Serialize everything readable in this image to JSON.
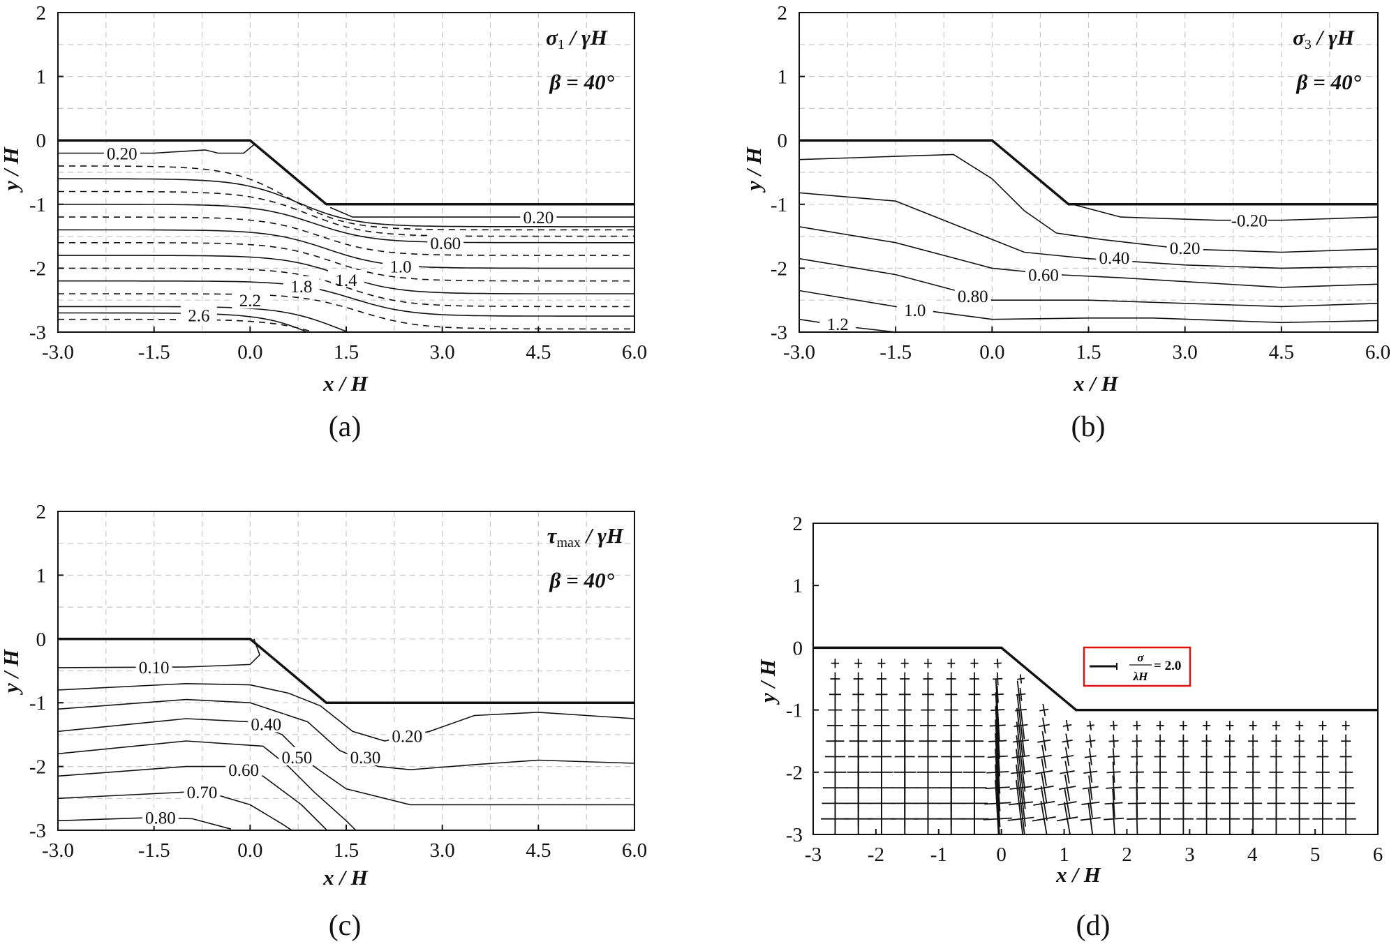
{
  "chart_data": [
    {
      "id": "a",
      "type": "contour",
      "caption": "(a)",
      "annotation_quantity": "σ",
      "annotation_sub": "1",
      "annotation_rest": " / γH",
      "annotation_angle": "β = 40°",
      "xlabel": "x / H",
      "ylabel": "y / H",
      "xlim": [
        -3,
        6
      ],
      "ylim": [
        -3,
        2
      ],
      "xticks": [
        "-3.0",
        "-1.5",
        "0.0",
        "1.5",
        "3.0",
        "4.5",
        "6.0"
      ],
      "xtick_values": [
        -3,
        -1.5,
        0,
        1.5,
        3,
        4.5,
        6
      ],
      "yticks": [
        "2",
        "1",
        "0",
        "-1",
        "-2",
        "-3"
      ],
      "ytick_values": [
        2,
        1,
        0,
        -1,
        -2,
        -3
      ],
      "grid": true,
      "slope_profile": [
        [
          -3,
          0
        ],
        [
          0,
          0
        ],
        [
          1.19,
          -1
        ],
        [
          6,
          -1
        ]
      ],
      "contours": [
        {
          "label": "0.20",
          "dashed": false,
          "points": [
            [
              -3,
              -0.2
            ],
            [
              -1.5,
              -0.2
            ],
            [
              -0.7,
              -0.15
            ],
            [
              -0.5,
              -0.2
            ],
            [
              -0.1,
              -0.2
            ],
            [
              0.08,
              -0.05
            ]
          ],
          "label_at": [
            -2.0,
            -0.2
          ]
        },
        {
          "label": "0.20",
          "dashed": false,
          "points": [
            [
              1.25,
              -1.05
            ],
            [
              1.6,
              -1.2
            ],
            [
              3,
              -1.2
            ],
            [
              6,
              -1.2
            ]
          ],
          "label_at": [
            4.5,
            -1.2
          ]
        },
        {
          "label": "",
          "dashed": true,
          "sigmoid": [
            -0.4,
            -1.4,
            0.6
          ]
        },
        {
          "label": "",
          "dashed": false,
          "sigmoid": [
            -0.6,
            -1.35,
            0.75
          ]
        },
        {
          "label": "",
          "dashed": true,
          "sigmoid": [
            -0.8,
            -1.5,
            0.9
          ]
        },
        {
          "label": "0.60",
          "dashed": false,
          "sigmoid": [
            -1.0,
            -1.6,
            1.0
          ],
          "label_at": [
            3.05,
            -1.6
          ]
        },
        {
          "label": "",
          "dashed": true,
          "sigmoid": [
            -1.2,
            -1.8,
            1.1
          ]
        },
        {
          "label": "1.0",
          "dashed": false,
          "sigmoid": [
            -1.4,
            -2.0,
            1.2
          ],
          "label_at": [
            2.35,
            -1.97
          ]
        },
        {
          "label": "",
          "dashed": true,
          "sigmoid": [
            -1.6,
            -2.2,
            1.3
          ]
        },
        {
          "label": "1.4",
          "dashed": false,
          "sigmoid": [
            -1.8,
            -2.4,
            1.4
          ],
          "label_at": [
            1.5,
            -2.18
          ]
        },
        {
          "label": "",
          "dashed": true,
          "sigmoid": [
            -2.0,
            -2.6,
            1.5
          ]
        },
        {
          "label": "1.8",
          "dashed": false,
          "sigmoid": [
            -2.2,
            -2.75,
            1.6
          ],
          "label_at": [
            0.8,
            -2.28
          ]
        },
        {
          "label": "",
          "dashed": true,
          "sigmoid": [
            -2.4,
            -2.95,
            1.7
          ]
        },
        {
          "label": "2.2",
          "dashed": false,
          "sigmoid": [
            -2.6,
            -3.3,
            1.4
          ],
          "label_at": [
            0.0,
            -2.5
          ]
        },
        {
          "label": "",
          "dashed": true,
          "sigmoid": [
            -2.8,
            -3.4,
            1.3
          ]
        },
        {
          "label": "2.6",
          "dashed": false,
          "sigmoid": [
            -2.7,
            -3.6,
            1.2
          ],
          "label_at": [
            -0.8,
            -2.73
          ]
        }
      ]
    },
    {
      "id": "b",
      "type": "contour",
      "caption": "(b)",
      "annotation_quantity": "σ",
      "annotation_sub": "3",
      "annotation_rest": " / γH",
      "annotation_angle": "β = 40°",
      "xlabel": "x / H",
      "ylabel": "y / H",
      "xlim": [
        -3,
        6
      ],
      "ylim": [
        -3,
        2
      ],
      "xticks": [
        "-3.0",
        "-1.5",
        "0.0",
        "1.5",
        "3.0",
        "4.5",
        "6.0"
      ],
      "xtick_values": [
        -3,
        -1.5,
        0,
        1.5,
        3,
        4.5,
        6
      ],
      "yticks": [
        "2",
        "1",
        "0",
        "-1",
        "-2",
        "-3"
      ],
      "ytick_values": [
        2,
        1,
        0,
        -1,
        -2,
        -3
      ],
      "grid": true,
      "slope_profile": [
        [
          -3,
          0
        ],
        [
          0,
          0
        ],
        [
          1.19,
          -1
        ],
        [
          6,
          -1
        ]
      ],
      "contours": [
        {
          "label": "-0.20",
          "dashed": false,
          "points": [
            [
              1.25,
              -1.0
            ],
            [
              2,
              -1.2
            ],
            [
              3.5,
              -1.25
            ],
            [
              4.5,
              -1.25
            ],
            [
              6,
              -1.2
            ]
          ],
          "label_at": [
            4.0,
            -1.25
          ]
        },
        {
          "label": "0.20",
          "dashed": false,
          "points": [
            [
              -3,
              -0.3
            ],
            [
              -1.5,
              -0.25
            ],
            [
              -0.6,
              -0.22
            ],
            [
              0.0,
              -0.6
            ],
            [
              0.5,
              -1.1
            ],
            [
              1.0,
              -1.45
            ],
            [
              1.7,
              -1.55
            ],
            [
              3,
              -1.7
            ],
            [
              4.5,
              -1.75
            ],
            [
              6,
              -1.7
            ]
          ],
          "label_at": [
            3.0,
            -1.68
          ]
        },
        {
          "label": "0.40",
          "dashed": false,
          "points": [
            [
              -3,
              -0.82
            ],
            [
              -1.5,
              -0.95
            ],
            [
              -0.5,
              -1.35
            ],
            [
              0.5,
              -1.75
            ],
            [
              1.5,
              -1.85
            ],
            [
              3,
              -1.95
            ],
            [
              4.5,
              -2.0
            ],
            [
              6,
              -1.97
            ]
          ],
          "label_at": [
            1.9,
            -1.83
          ]
        },
        {
          "label": "0.60",
          "dashed": false,
          "points": [
            [
              -3,
              -1.35
            ],
            [
              -1.5,
              -1.6
            ],
            [
              0,
              -2.0
            ],
            [
              1,
              -2.1
            ],
            [
              2,
              -2.15
            ],
            [
              4.5,
              -2.3
            ],
            [
              6,
              -2.25
            ]
          ],
          "label_at": [
            0.8,
            -2.1
          ]
        },
        {
          "label": "0.80",
          "dashed": false,
          "points": [
            [
              -3,
              -1.85
            ],
            [
              -1.5,
              -2.1
            ],
            [
              0,
              -2.5
            ],
            [
              1.5,
              -2.5
            ],
            [
              3,
              -2.55
            ],
            [
              4.5,
              -2.6
            ],
            [
              6,
              -2.55
            ]
          ],
          "label_at": [
            -0.3,
            -2.43
          ]
        },
        {
          "label": "1.0",
          "dashed": false,
          "points": [
            [
              -3,
              -2.35
            ],
            [
              -1.5,
              -2.6
            ],
            [
              0,
              -2.8
            ],
            [
              1.5,
              -2.78
            ],
            [
              2.5,
              -2.78
            ],
            [
              4.5,
              -2.85
            ],
            [
              6,
              -2.82
            ]
          ],
          "label_at": [
            -1.2,
            -2.65
          ]
        },
        {
          "label": "1.2",
          "dashed": false,
          "points": [
            [
              -3,
              -2.8
            ],
            [
              -2.2,
              -2.92
            ],
            [
              -1.5,
              -3.0
            ]
          ],
          "label_at": [
            -2.4,
            -2.87
          ]
        }
      ]
    },
    {
      "id": "c",
      "type": "contour",
      "caption": "(c)",
      "annotation_quantity": "τ",
      "annotation_sub": "max",
      "annotation_rest": " / γH",
      "annotation_angle": "β = 40°",
      "xlabel": "x / H",
      "ylabel": "y / H",
      "xlim": [
        -3,
        6
      ],
      "ylim": [
        -3,
        2
      ],
      "xticks": [
        "-3.0",
        "-1.5",
        "0.0",
        "1.5",
        "3.0",
        "4.5",
        "6.0"
      ],
      "xtick_values": [
        -3,
        -1.5,
        0,
        1.5,
        3,
        4.5,
        6
      ],
      "yticks": [
        "2",
        "1",
        "0",
        "-1",
        "-2",
        "-3"
      ],
      "ytick_values": [
        2,
        1,
        0,
        -1,
        -2,
        -3
      ],
      "grid": true,
      "slope_profile": [
        [
          -3,
          0
        ],
        [
          0,
          0
        ],
        [
          1.19,
          -1
        ],
        [
          6,
          -1
        ]
      ],
      "contours": [
        {
          "label": "0.10",
          "dashed": false,
          "points": [
            [
              -3,
              -0.45
            ],
            [
              -1,
              -0.44
            ],
            [
              0,
              -0.4
            ],
            [
              0.15,
              -0.25
            ],
            [
              0.06,
              0
            ]
          ],
          "label_at": [
            -1.5,
            -0.44
          ]
        },
        {
          "label": "0.20",
          "dashed": false,
          "points": [
            [
              -3,
              -0.8
            ],
            [
              -1,
              -0.7
            ],
            [
              0,
              -0.72
            ],
            [
              0.6,
              -0.85
            ],
            [
              1.1,
              -1.05
            ],
            [
              1.6,
              -1.45
            ],
            [
              2.1,
              -1.6
            ],
            [
              2.8,
              -1.45
            ],
            [
              3.5,
              -1.2
            ],
            [
              4.5,
              -1.15
            ],
            [
              6,
              -1.25
            ]
          ],
          "label_at": [
            2.45,
            -1.52
          ]
        },
        {
          "label": "0.30",
          "dashed": false,
          "points": [
            [
              -3,
              -1.1
            ],
            [
              -1,
              -0.95
            ],
            [
              0,
              -1.0
            ],
            [
              0.9,
              -1.3
            ],
            [
              1.4,
              -1.75
            ],
            [
              2.0,
              -2.0
            ],
            [
              2.5,
              -2.05
            ],
            [
              3.5,
              -1.97
            ],
            [
              4.5,
              -1.9
            ],
            [
              6,
              -1.95
            ]
          ],
          "label_at": [
            1.8,
            -1.85
          ]
        },
        {
          "label": "0.40",
          "dashed": false,
          "points": [
            [
              -3,
              -1.45
            ],
            [
              -1,
              -1.25
            ],
            [
              0,
              -1.3
            ],
            [
              0.5,
              -1.5
            ],
            [
              1.0,
              -2.0
            ],
            [
              1.5,
              -2.35
            ],
            [
              2.5,
              -2.6
            ],
            [
              4.5,
              -2.6
            ],
            [
              6,
              -2.6
            ]
          ],
          "label_at": [
            0.25,
            -1.33
          ]
        },
        {
          "label": "0.50",
          "dashed": false,
          "points": [
            [
              -3,
              -1.8
            ],
            [
              -1,
              -1.6
            ],
            [
              0.2,
              -1.68
            ],
            [
              0.6,
              -2.0
            ],
            [
              1.0,
              -2.4
            ],
            [
              1.5,
              -2.85
            ],
            [
              1.65,
              -3
            ]
          ],
          "label_at": [
            0.73,
            -1.85
          ]
        },
        {
          "label": "0.60",
          "dashed": false,
          "points": [
            [
              -3,
              -2.15
            ],
            [
              -1,
              -2.0
            ],
            [
              -0.3,
              -2.0
            ],
            [
              0.2,
              -2.15
            ],
            [
              0.8,
              -2.6
            ],
            [
              1.2,
              -3
            ]
          ],
          "label_at": [
            -0.1,
            -2.05
          ]
        },
        {
          "label": "0.70",
          "dashed": false,
          "points": [
            [
              -3,
              -2.5
            ],
            [
              -1,
              -2.4
            ],
            [
              -0.6,
              -2.42
            ],
            [
              0,
              -2.6
            ],
            [
              0.5,
              -2.9
            ],
            [
              0.65,
              -3
            ]
          ],
          "label_at": [
            -0.75,
            -2.4
          ]
        },
        {
          "label": "0.80",
          "dashed": false,
          "points": [
            [
              -3,
              -2.85
            ],
            [
              -1.5,
              -2.8
            ],
            [
              -0.9,
              -2.82
            ],
            [
              -0.3,
              -2.98
            ]
          ],
          "label_at": [
            -1.4,
            -2.8
          ]
        }
      ]
    },
    {
      "id": "d",
      "type": "vector-cross",
      "caption": "(d)",
      "xlabel": "x / H",
      "ylabel": "y / H",
      "xlim": [
        -3,
        6
      ],
      "ylim": [
        -3,
        2
      ],
      "xticks": [
        "-3",
        "-2",
        "-1",
        "0",
        "1",
        "2",
        "3",
        "4",
        "5",
        "6"
      ],
      "xtick_values": [
        -3,
        -2,
        -1,
        0,
        1,
        2,
        3,
        4,
        5,
        6
      ],
      "yticks": [
        "2",
        "1",
        "0",
        "-1",
        "-2",
        "-3"
      ],
      "ytick_values": [
        2,
        1,
        0,
        -1,
        -2,
        -3
      ],
      "grid": false,
      "slope_profile": [
        [
          -3,
          0
        ],
        [
          0,
          0
        ],
        [
          1.19,
          -1
        ],
        [
          6,
          -1
        ]
      ],
      "legend_numerator": "σ",
      "legend_denominator": "λH",
      "legend_value": "= 2.0",
      "legend_color": "#e01010"
    }
  ]
}
